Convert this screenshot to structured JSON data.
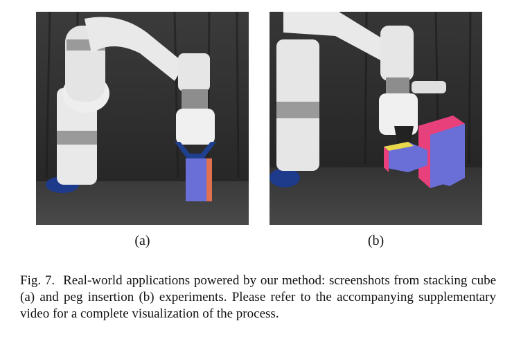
{
  "subfigures": [
    {
      "label": "(a)"
    },
    {
      "label": "(b)"
    }
  ],
  "caption": {
    "fig_label": "Fig. 7.",
    "text": "Real-world applications powered by our method: screenshots from stacking cube (a) and peg insertion (b) experiments. Please refer to the accompanying supplementary video for a complete visualization of the process."
  },
  "colors": {
    "background_wall": "#2b2b2b",
    "table": "#3a3a3a",
    "robot_white": "#e9e9e9",
    "robot_silver": "#9a9a9a",
    "cube_blue": "#6a6fd8",
    "cube_orange": "#e07050",
    "peg_pink": "#e8407a",
    "peg_yellow": "#e8d84a",
    "base_blue": "#1e3a8a"
  }
}
